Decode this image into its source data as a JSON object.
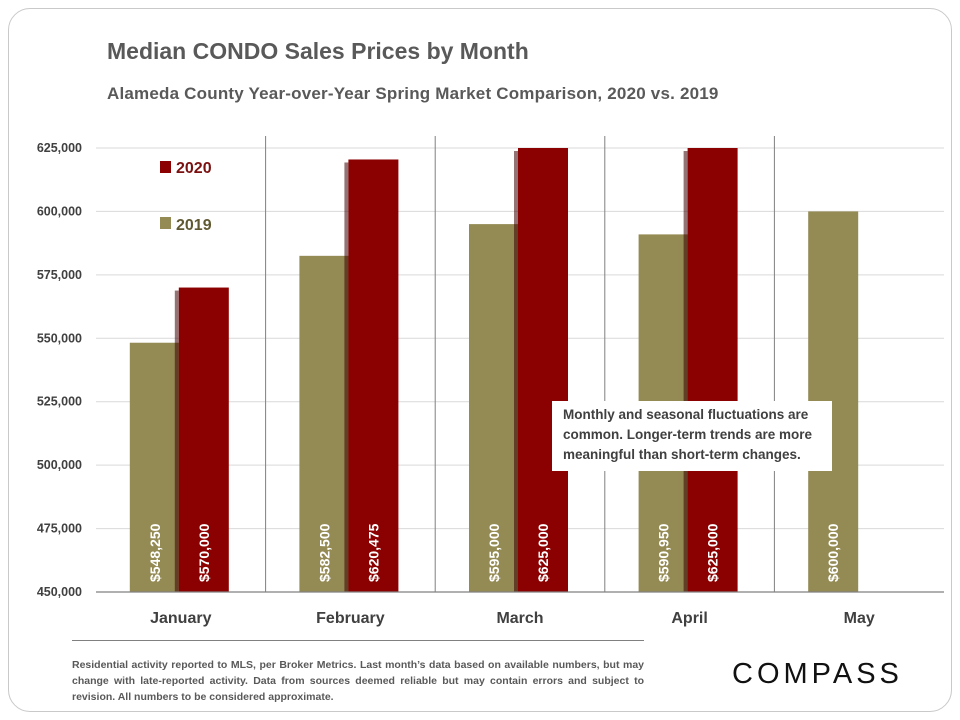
{
  "title": "Median CONDO Sales Prices by Month",
  "subtitle": "Alameda County Year-over-Year  Spring Market Comparison,  2020 vs. 2019",
  "note": "Monthly and seasonal fluctuations are common. Longer-term trends are more meaningful than short-term changes.",
  "footer": "Residential activity reported to MLS, per Broker Metrics. Last month’s data based on available numbers, but may change with late-reported activity. Data from sources deemed reliable but may contain errors and subject to revision. All numbers to be considered approximate.",
  "logo": "COMPASS",
  "colors": {
    "series_2020": "#8b0000",
    "series_2019": "#948a54"
  },
  "chart_data": {
    "type": "bar",
    "categories": [
      "January",
      "February",
      "March",
      "April",
      "May"
    ],
    "ylim": [
      450000,
      625000
    ],
    "yticks": [
      450000,
      475000,
      500000,
      525000,
      550000,
      575000,
      600000,
      625000
    ],
    "ytick_labels": [
      "450,000",
      "475,000",
      "500,000",
      "525,000",
      "550,000",
      "575,000",
      "600,000",
      "625,000"
    ],
    "legend_position": "top-left",
    "grid": true,
    "series": [
      {
        "name": "2019",
        "color": "#948a54",
        "values": [
          548250,
          582500,
          595000,
          590950,
          600000
        ],
        "labels": [
          "$548,250",
          "$582,500",
          "$595,000",
          "$590,950",
          "$600,000"
        ]
      },
      {
        "name": "2020",
        "color": "#8b0000",
        "values": [
          570000,
          620475,
          625000,
          625000,
          null
        ],
        "labels": [
          "$570,000",
          "$620,475",
          "$625,000",
          "$625,000",
          null
        ]
      }
    ]
  }
}
